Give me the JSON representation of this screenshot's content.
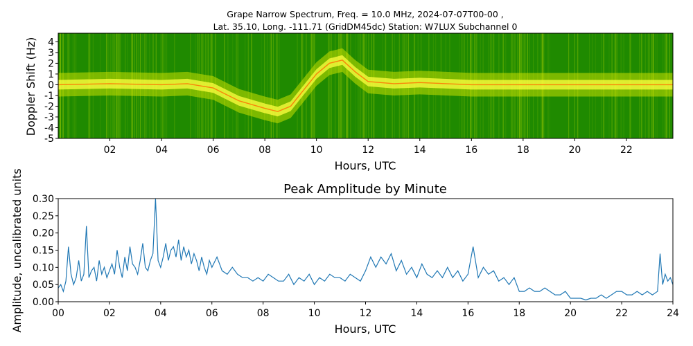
{
  "figure": {
    "title_line1": "Grape Narrow Spectrum, Freq. = 10.0 MHz, 2024-07-07T00-00 ,",
    "title_line2": "Lat.  35.10, Long. -111.71 (GridDM45dc) Station: W7LUX Subchannel 0"
  },
  "chart_data": [
    {
      "type": "heatmap",
      "ylabel": "Doppler Shift (Hz)",
      "xlabel": "Hours, UTC",
      "xlim": [
        0,
        23.8
      ],
      "ylim": [
        -5,
        4.8
      ],
      "x_ticks": [
        "02",
        "04",
        "06",
        "08",
        "10",
        "12",
        "14",
        "16",
        "18",
        "20",
        "22"
      ],
      "x_tick_values": [
        2,
        4,
        6,
        8,
        10,
        12,
        14,
        16,
        18,
        20,
        22
      ],
      "y_ticks": [
        "4",
        "3",
        "2",
        "1",
        "0",
        "-1",
        "-2",
        "-3",
        "-4",
        "-5"
      ],
      "y_tick_values": [
        4,
        3,
        2,
        1,
        0,
        -1,
        -2,
        -3,
        -4,
        -5
      ],
      "colors": {
        "background": "#1f8a00",
        "mid": "#c8e000",
        "high": "#ffff40",
        "peak": "#ff6a00"
      },
      "carrier_trace": {
        "hours": [
          0,
          2,
          4,
          5,
          6,
          7,
          8,
          8.5,
          9,
          9.5,
          10,
          10.5,
          11,
          11.5,
          12,
          13,
          14,
          16,
          18,
          20,
          22,
          23.8
        ],
        "doppler_hz": [
          0,
          0.1,
          0,
          0.1,
          -0.3,
          -1.5,
          -2.2,
          -2.5,
          -2,
          -0.5,
          1,
          2,
          2.3,
          1.2,
          0.3,
          0.1,
          0.2,
          0,
          0,
          0,
          0,
          0
        ]
      }
    },
    {
      "type": "line",
      "title": "Peak Amplitude by Minute",
      "xlabel": "Hours, UTC",
      "ylabel": "Amplitude, uncalibrated units",
      "xlim": [
        0,
        24
      ],
      "ylim": [
        0,
        0.3
      ],
      "line_color": "#1f77b4",
      "x_ticks": [
        "00",
        "02",
        "04",
        "06",
        "08",
        "10",
        "12",
        "14",
        "16",
        "18",
        "20",
        "22",
        "24"
      ],
      "x_tick_values": [
        0,
        2,
        4,
        6,
        8,
        10,
        12,
        14,
        16,
        18,
        20,
        22,
        24
      ],
      "y_ticks": [
        "0.00",
        "0.05",
        "0.10",
        "0.15",
        "0.20",
        "0.25",
        "0.30"
      ],
      "y_tick_values": [
        0,
        0.05,
        0.1,
        0.15,
        0.2,
        0.25,
        0.3
      ],
      "series": [
        {
          "x": [
            0,
            0.1,
            0.2,
            0.3,
            0.4,
            0.5,
            0.6,
            0.7,
            0.8,
            0.9,
            1,
            1.1,
            1.2,
            1.3,
            1.4,
            1.5,
            1.6,
            1.7,
            1.8,
            1.9,
            2,
            2.1,
            2.2,
            2.3,
            2.4,
            2.5,
            2.6,
            2.7,
            2.8,
            2.9,
            3,
            3.1,
            3.2,
            3.3,
            3.4,
            3.5,
            3.6,
            3.7,
            3.8,
            3.9,
            4,
            4.1,
            4.2,
            4.3,
            4.4,
            4.5,
            4.6,
            4.7,
            4.8,
            4.9,
            5,
            5.1,
            5.2,
            5.3,
            5.4,
            5.5,
            5.6,
            5.7,
            5.8,
            5.9,
            6,
            6.2,
            6.4,
            6.6,
            6.8,
            7,
            7.2,
            7.4,
            7.6,
            7.8,
            8,
            8.2,
            8.4,
            8.6,
            8.8,
            9,
            9.2,
            9.4,
            9.6,
            9.8,
            10,
            10.2,
            10.4,
            10.6,
            10.8,
            11,
            11.2,
            11.4,
            11.6,
            11.8,
            12,
            12.2,
            12.4,
            12.6,
            12.8,
            13,
            13.2,
            13.4,
            13.6,
            13.8,
            14,
            14.2,
            14.4,
            14.6,
            14.8,
            15,
            15.2,
            15.4,
            15.6,
            15.8,
            16,
            16.2,
            16.4,
            16.6,
            16.8,
            17,
            17.2,
            17.4,
            17.6,
            17.8,
            18,
            18.2,
            18.4,
            18.6,
            18.8,
            19,
            19.2,
            19.4,
            19.6,
            19.8,
            20,
            20.2,
            20.4,
            20.6,
            20.8,
            21,
            21.2,
            21.4,
            21.6,
            21.8,
            22,
            22.2,
            22.4,
            22.6,
            22.8,
            23,
            23.2,
            23.4,
            23.5,
            23.6,
            23.7,
            23.8,
            23.9,
            24
          ],
          "values": [
            0.04,
            0.05,
            0.03,
            0.06,
            0.16,
            0.08,
            0.05,
            0.07,
            0.12,
            0.06,
            0.08,
            0.22,
            0.07,
            0.09,
            0.1,
            0.06,
            0.12,
            0.08,
            0.1,
            0.07,
            0.09,
            0.11,
            0.08,
            0.15,
            0.1,
            0.07,
            0.13,
            0.09,
            0.16,
            0.11,
            0.1,
            0.08,
            0.12,
            0.17,
            0.1,
            0.09,
            0.12,
            0.14,
            0.3,
            0.12,
            0.1,
            0.13,
            0.17,
            0.12,
            0.15,
            0.16,
            0.13,
            0.18,
            0.12,
            0.16,
            0.13,
            0.15,
            0.11,
            0.14,
            0.12,
            0.09,
            0.13,
            0.1,
            0.08,
            0.12,
            0.1,
            0.13,
            0.09,
            0.08,
            0.1,
            0.08,
            0.07,
            0.07,
            0.06,
            0.07,
            0.06,
            0.08,
            0.07,
            0.06,
            0.06,
            0.08,
            0.05,
            0.07,
            0.06,
            0.08,
            0.05,
            0.07,
            0.06,
            0.08,
            0.07,
            0.07,
            0.06,
            0.08,
            0.07,
            0.06,
            0.09,
            0.13,
            0.1,
            0.13,
            0.11,
            0.14,
            0.09,
            0.12,
            0.08,
            0.1,
            0.07,
            0.11,
            0.08,
            0.07,
            0.09,
            0.07,
            0.1,
            0.07,
            0.09,
            0.06,
            0.08,
            0.16,
            0.07,
            0.1,
            0.08,
            0.09,
            0.06,
            0.07,
            0.05,
            0.07,
            0.03,
            0.03,
            0.04,
            0.03,
            0.03,
            0.04,
            0.03,
            0.02,
            0.02,
            0.03,
            0.01,
            0.01,
            0.01,
            0.005,
            0.01,
            0.01,
            0.02,
            0.01,
            0.02,
            0.03,
            0.03,
            0.02,
            0.02,
            0.03,
            0.02,
            0.03,
            0.02,
            0.03,
            0.14,
            0.05,
            0.08,
            0.06,
            0.07,
            0.05
          ]
        }
      ]
    }
  ]
}
